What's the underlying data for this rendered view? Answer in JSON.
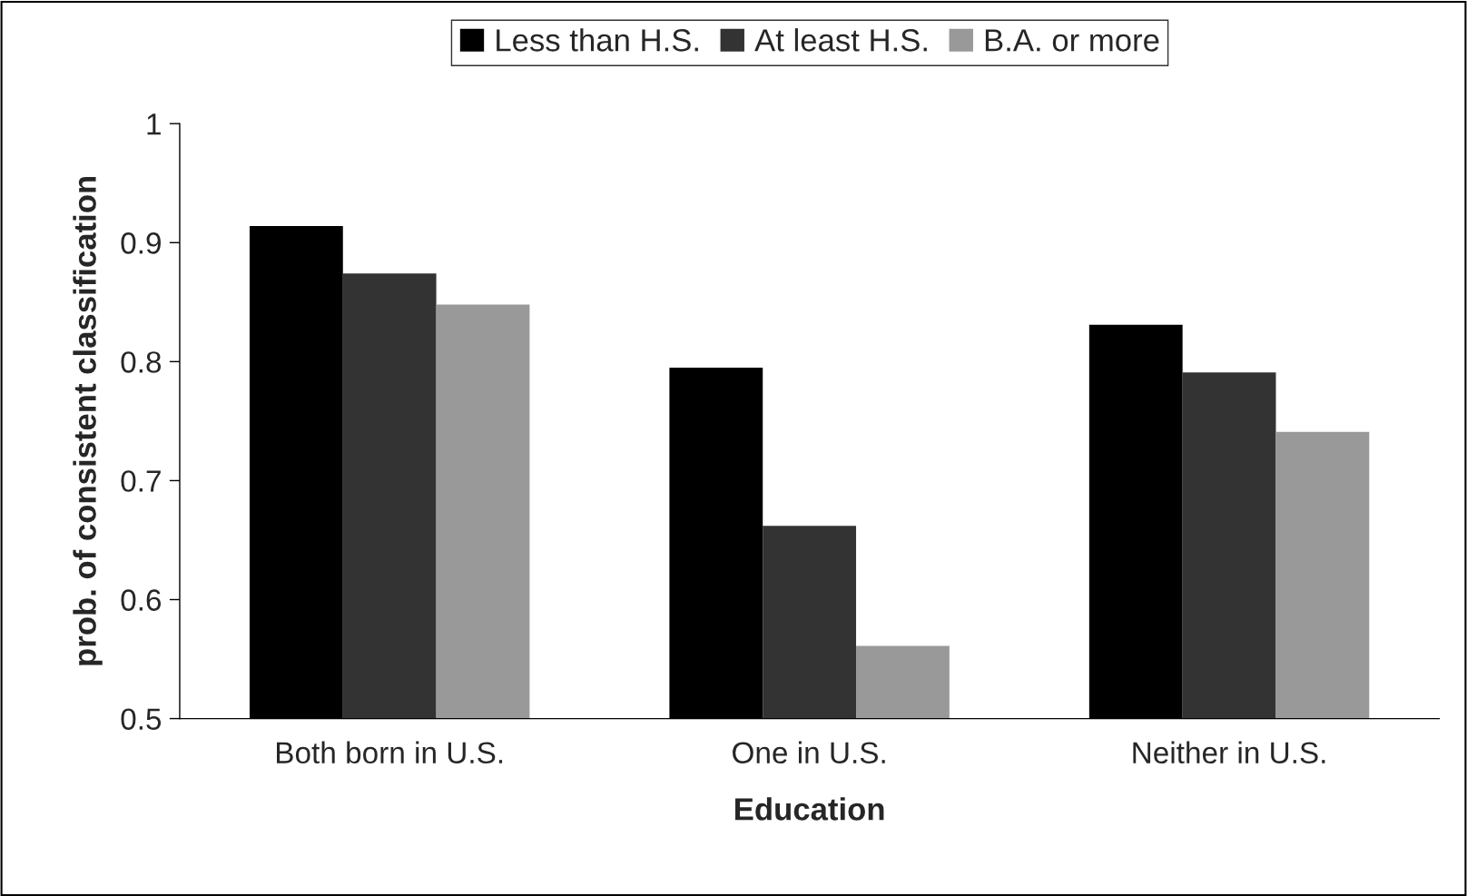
{
  "chart_data": {
    "type": "bar",
    "xlabel": "Education",
    "ylabel": "prob. of consistent classification",
    "categories": [
      "Both born in U.S.",
      "One in U.S.",
      "Neither in U.S."
    ],
    "series": [
      {
        "name": "Less than H.S.",
        "color": "#000000",
        "values": [
          0.914,
          0.795,
          0.831
        ]
      },
      {
        "name": "At least H.S.",
        "color": "#333333",
        "values": [
          0.874,
          0.662,
          0.791
        ]
      },
      {
        "name": "B.A. or more",
        "color": "#999999",
        "values": [
          0.848,
          0.561,
          0.741
        ]
      }
    ],
    "ylim": [
      0.5,
      1
    ],
    "yticks": [
      {
        "value": 0.5,
        "label": "0.5"
      },
      {
        "value": 0.6,
        "label": "0.6"
      },
      {
        "value": 0.7,
        "label": "0.7"
      },
      {
        "value": 0.8,
        "label": "0.8"
      },
      {
        "value": 0.9,
        "label": "0.9"
      },
      {
        "value": 1,
        "label": "1"
      }
    ],
    "grid": false,
    "legend": "top"
  }
}
